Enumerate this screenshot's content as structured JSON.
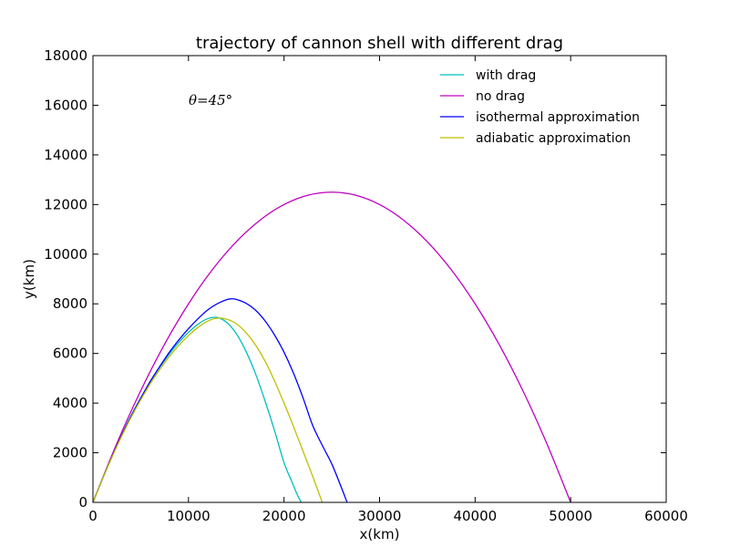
{
  "chart_data": {
    "type": "line",
    "title": "trajectory of cannon shell with different drag",
    "xlabel": "x(km)",
    "ylabel": "y(km)",
    "xlim": [
      0,
      60000
    ],
    "ylim": [
      0,
      18000
    ],
    "xticks": [
      0,
      10000,
      20000,
      30000,
      40000,
      50000,
      60000
    ],
    "yticks": [
      0,
      2000,
      4000,
      6000,
      8000,
      10000,
      12000,
      14000,
      16000,
      18000
    ],
    "xtick_labels": [
      "0",
      "10000",
      "20000",
      "30000",
      "40000",
      "50000",
      "60000"
    ],
    "ytick_labels": [
      "0",
      "2000",
      "4000",
      "6000",
      "8000",
      "10000",
      "12000",
      "14000",
      "16000",
      "18000"
    ],
    "grid": false,
    "legend_position": "top-right",
    "annotation": "θ=45°",
    "series": [
      {
        "name": "with drag",
        "color": "#00bfbf",
        "x": [
          0,
          1000,
          2000,
          3000,
          4000,
          5000,
          6000,
          7000,
          8000,
          9000,
          10000,
          11000,
          12000,
          13000,
          14000,
          15000,
          16000,
          17000,
          18000,
          19000,
          20000,
          20800,
          21400,
          21800
        ],
        "y": [
          0,
          950,
          1850,
          2700,
          3500,
          4200,
          4850,
          5450,
          5980,
          6450,
          6850,
          7180,
          7400,
          7450,
          7250,
          6800,
          6100,
          5200,
          4100,
          2900,
          1600,
          850,
          300,
          0
        ]
      },
      {
        "name": "no drag",
        "color": "#bf00bf",
        "x": [
          0,
          2500,
          5000,
          7500,
          10000,
          12500,
          15000,
          17500,
          20000,
          22500,
          25000,
          27500,
          30000,
          32500,
          35000,
          37500,
          40000,
          42500,
          45000,
          47500,
          50000
        ],
        "y": [
          0,
          2375,
          4500,
          6375,
          8000,
          9375,
          10500,
          11375,
          12000,
          12375,
          12500,
          12375,
          12000,
          11375,
          10500,
          9375,
          8000,
          6375,
          4500,
          2375,
          0
        ]
      },
      {
        "name": "isothermal approximation",
        "color": "#0000ff",
        "x": [
          0,
          1000,
          2000,
          3000,
          4000,
          5000,
          6000,
          7000,
          8000,
          9000,
          10000,
          11000,
          12000,
          13000,
          14000,
          14500,
          15000,
          16000,
          17000,
          18000,
          19000,
          20000,
          21000,
          22000,
          23000,
          24000,
          25000,
          26000,
          26600
        ],
        "y": [
          0,
          950,
          1850,
          2700,
          3480,
          4200,
          4880,
          5480,
          6050,
          6550,
          7000,
          7400,
          7750,
          8000,
          8170,
          8200,
          8180,
          8030,
          7750,
          7320,
          6750,
          6050,
          5200,
          4200,
          3100,
          2300,
          1550,
          600,
          0
        ]
      },
      {
        "name": "adiabatic approximation",
        "color": "#bfbf00",
        "x": [
          0,
          1000,
          2000,
          3000,
          4000,
          5000,
          6000,
          7000,
          8000,
          9000,
          10000,
          11000,
          12000,
          13000,
          14000,
          15000,
          16000,
          17000,
          18000,
          19000,
          20000,
          21000,
          22000,
          23000,
          24000
        ],
        "y": [
          0,
          940,
          1830,
          2660,
          3430,
          4130,
          4780,
          5360,
          5880,
          6330,
          6720,
          7050,
          7300,
          7420,
          7380,
          7200,
          6850,
          6350,
          5700,
          4900,
          4000,
          3050,
          2050,
          1050,
          0
        ]
      }
    ]
  }
}
